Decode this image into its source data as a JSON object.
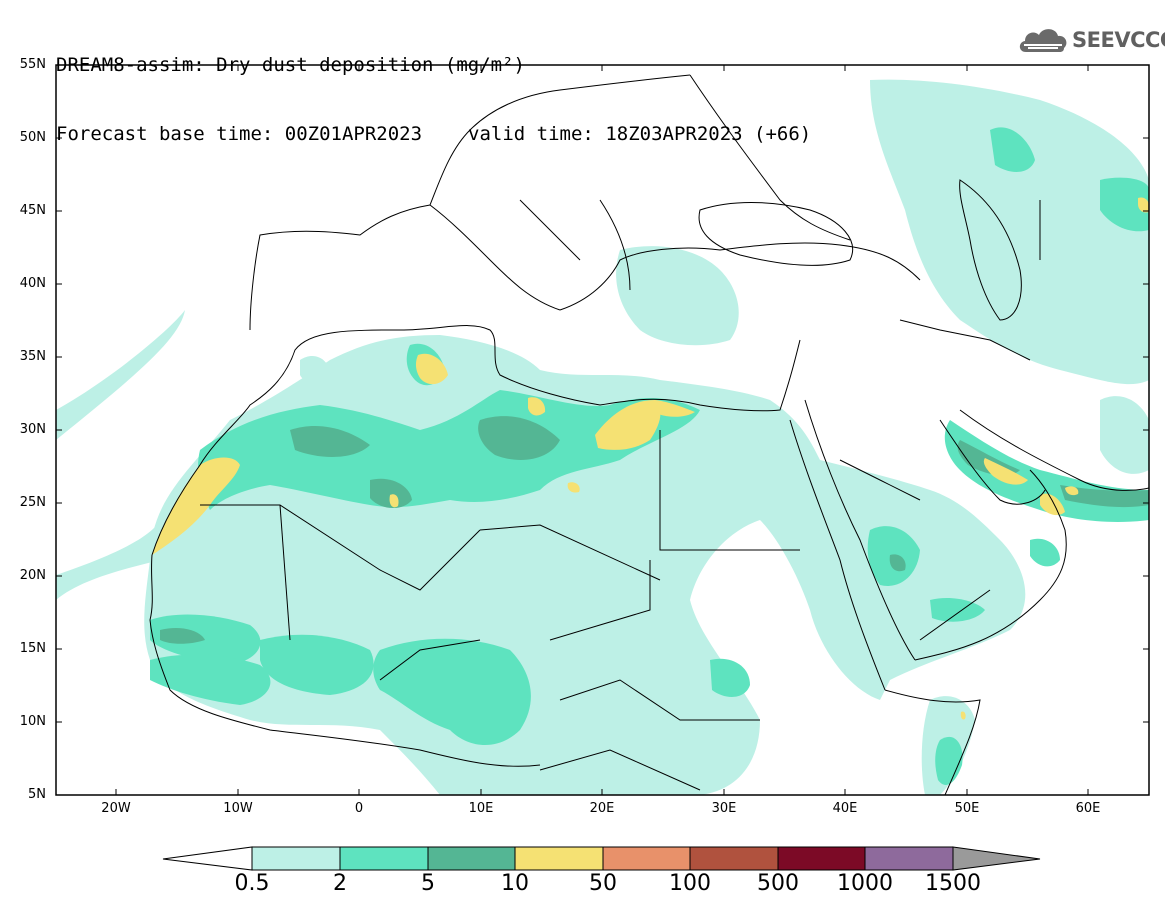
{
  "title": {
    "line1": "DREAM8-assim: Dry dust deposition (mg/m²)",
    "base_time": "Forecast base time: 00Z01APR2023",
    "valid_time": "valid time: 18Z03APR2023 (+66)"
  },
  "logo": {
    "text": "SEEVCCC",
    "icon": "cloud-logo-icon"
  },
  "axes": {
    "lat_labels": [
      "55N",
      "50N",
      "45N",
      "40N",
      "35N",
      "30N",
      "25N",
      "20N",
      "15N",
      "10N",
      "5N"
    ],
    "lon_labels": [
      "20W",
      "10W",
      "0",
      "10E",
      "20E",
      "30E",
      "40E",
      "50E",
      "60E"
    ]
  },
  "colorbar": {
    "labels": [
      "0.5",
      "2",
      "5",
      "10",
      "50",
      "100",
      "500",
      "1000",
      "1500"
    ],
    "colors": [
      "#bdf0e6",
      "#5ee3bf",
      "#54b694",
      "#f5e173",
      "#e8916a",
      "#b0523e",
      "#7c0a26",
      "#8e6a9c",
      "#9a9a9a"
    ]
  },
  "colors": {
    "land_outline": "#000000",
    "frame": "#000000"
  }
}
